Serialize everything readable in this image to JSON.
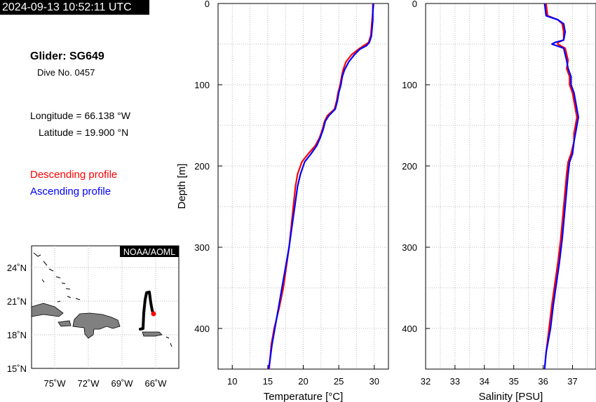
{
  "header": {
    "timestamp": "2024-09-13 10:52:11 UTC"
  },
  "glider": {
    "title": "Glider: SG649",
    "dive": "Dive No. 0457",
    "longitude": "Longitude = 66.138 °W",
    "latitude": "Latitude = 19.900 °N"
  },
  "legend": {
    "descending_label": "Descending profile",
    "ascending_label": "Ascending profile",
    "descending_color": "#ff0000",
    "ascending_color": "#0000ff"
  },
  "map": {
    "credit": "NOAA/AOML",
    "lon_ticks": [
      "75˚W",
      "72˚W",
      "69˚W",
      "66˚W"
    ],
    "lat_ticks": [
      "24˚N",
      "21˚N",
      "18˚N",
      "15˚N"
    ],
    "land_color": "#808080",
    "track_color": "#000000",
    "position_color": "#ff0000"
  },
  "chart_data": [
    {
      "type": "line",
      "title": "",
      "xlabel": "Temperature [°C]",
      "ylabel": "Depth [m]",
      "xlim": [
        8,
        32
      ],
      "ylim": [
        0,
        450
      ],
      "y_inverted": true,
      "x_ticks": [
        10,
        15,
        20,
        25,
        30
      ],
      "y_ticks": [
        0,
        100,
        200,
        300,
        400
      ],
      "grid": true,
      "series": [
        {
          "name": "Descending profile",
          "points": [
            [
              29.8,
              0
            ],
            [
              29.8,
              10
            ],
            [
              29.7,
              20
            ],
            [
              29.6,
              30
            ],
            [
              29.5,
              40
            ],
            [
              29.2,
              48
            ],
            [
              28.5,
              52
            ],
            [
              27.8,
              56
            ],
            [
              26.8,
              63
            ],
            [
              26.0,
              72
            ],
            [
              25.6,
              82
            ],
            [
              25.4,
              90
            ],
            [
              25.2,
              100
            ],
            [
              24.9,
              110
            ],
            [
              24.7,
              120
            ],
            [
              24.4,
              130
            ],
            [
              23.4,
              138
            ],
            [
              23.0,
              145
            ],
            [
              22.7,
              155
            ],
            [
              22.3,
              165
            ],
            [
              21.7,
              175
            ],
            [
              20.7,
              185
            ],
            [
              19.8,
              195
            ],
            [
              19.2,
              210
            ],
            [
              18.9,
              225
            ],
            [
              18.6,
              250
            ],
            [
              18.3,
              275
            ],
            [
              18.0,
              300
            ],
            [
              17.6,
              325
            ],
            [
              17.2,
              350
            ],
            [
              16.6,
              375
            ],
            [
              15.9,
              400
            ],
            [
              15.5,
              420
            ],
            [
              15.3,
              440
            ],
            [
              15.2,
              450
            ]
          ]
        },
        {
          "name": "Ascending profile",
          "points": [
            [
              29.9,
              0
            ],
            [
              29.8,
              10
            ],
            [
              29.8,
              20
            ],
            [
              29.7,
              30
            ],
            [
              29.6,
              40
            ],
            [
              29.3,
              48
            ],
            [
              28.9,
              52
            ],
            [
              28.0,
              56
            ],
            [
              27.2,
              63
            ],
            [
              26.4,
              72
            ],
            [
              25.8,
              82
            ],
            [
              25.5,
              90
            ],
            [
              25.3,
              100
            ],
            [
              25.0,
              110
            ],
            [
              24.8,
              120
            ],
            [
              24.5,
              130
            ],
            [
              23.6,
              138
            ],
            [
              23.1,
              145
            ],
            [
              22.8,
              155
            ],
            [
              22.4,
              165
            ],
            [
              21.9,
              175
            ],
            [
              21.1,
              185
            ],
            [
              20.2,
              195
            ],
            [
              19.6,
              210
            ],
            [
              19.2,
              225
            ],
            [
              18.8,
              250
            ],
            [
              18.4,
              275
            ],
            [
              18.0,
              300
            ],
            [
              17.5,
              325
            ],
            [
              17.0,
              350
            ],
            [
              16.5,
              375
            ],
            [
              16.0,
              400
            ],
            [
              15.6,
              420
            ],
            [
              15.3,
              440
            ],
            [
              15.1,
              450
            ]
          ]
        }
      ]
    },
    {
      "type": "line",
      "title": "",
      "xlabel": "Salinity [PSU]",
      "ylabel": "",
      "xlim": [
        32,
        37.8
      ],
      "ylim": [
        0,
        450
      ],
      "y_inverted": true,
      "x_ticks": [
        32,
        33,
        34,
        35,
        36,
        37
      ],
      "y_ticks": [
        0,
        100,
        200,
        300,
        400
      ],
      "grid": true,
      "series": [
        {
          "name": "Descending profile",
          "points": [
            [
              36.1,
              0
            ],
            [
              36.15,
              15
            ],
            [
              36.5,
              20
            ],
            [
              36.65,
              25
            ],
            [
              36.7,
              35
            ],
            [
              36.7,
              45
            ],
            [
              36.5,
              48
            ],
            [
              36.5,
              50
            ],
            [
              36.75,
              55
            ],
            [
              36.85,
              70
            ],
            [
              36.8,
              80
            ],
            [
              36.9,
              90
            ],
            [
              36.9,
              100
            ],
            [
              37.0,
              110
            ],
            [
              37.05,
              120
            ],
            [
              37.1,
              130
            ],
            [
              37.15,
              140
            ],
            [
              37.1,
              150
            ],
            [
              37.05,
              160
            ],
            [
              37.05,
              170
            ],
            [
              36.95,
              185
            ],
            [
              36.85,
              195
            ],
            [
              36.8,
              210
            ],
            [
              36.75,
              230
            ],
            [
              36.7,
              250
            ],
            [
              36.65,
              270
            ],
            [
              36.6,
              290
            ],
            [
              36.5,
              320
            ],
            [
              36.4,
              345
            ],
            [
              36.3,
              370
            ],
            [
              36.2,
              400
            ],
            [
              36.1,
              430
            ],
            [
              36.05,
              450
            ]
          ]
        },
        {
          "name": "Ascending profile",
          "points": [
            [
              36.05,
              0
            ],
            [
              36.1,
              15
            ],
            [
              36.5,
              20
            ],
            [
              36.7,
              25
            ],
            [
              36.75,
              35
            ],
            [
              36.7,
              45
            ],
            [
              36.4,
              48
            ],
            [
              36.3,
              50
            ],
            [
              36.7,
              55
            ],
            [
              36.8,
              70
            ],
            [
              36.85,
              80
            ],
            [
              36.95,
              90
            ],
            [
              36.95,
              100
            ],
            [
              37.05,
              110
            ],
            [
              37.1,
              120
            ],
            [
              37.15,
              130
            ],
            [
              37.2,
              140
            ],
            [
              37.15,
              150
            ],
            [
              37.1,
              160
            ],
            [
              37.05,
              170
            ],
            [
              37.0,
              185
            ],
            [
              36.9,
              195
            ],
            [
              36.85,
              210
            ],
            [
              36.8,
              230
            ],
            [
              36.75,
              250
            ],
            [
              36.7,
              270
            ],
            [
              36.65,
              290
            ],
            [
              36.55,
              320
            ],
            [
              36.45,
              345
            ],
            [
              36.35,
              370
            ],
            [
              36.25,
              400
            ],
            [
              36.1,
              430
            ],
            [
              36.05,
              450
            ]
          ]
        }
      ]
    }
  ]
}
